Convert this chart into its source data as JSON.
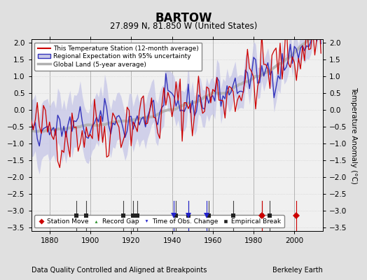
{
  "title": "BARTOW",
  "subtitle": "27.899 N, 81.850 W (United States)",
  "ylabel": "Temperature Anomaly (°C)",
  "xlabel_footer": "Data Quality Controlled and Aligned at Breakpoints",
  "footer_right": "Berkeley Earth",
  "ylim": [
    -3.6,
    2.1
  ],
  "xlim": [
    1871,
    2014
  ],
  "yticks": [
    -3.5,
    -3,
    -2.5,
    -2,
    -1.5,
    -1,
    -0.5,
    0,
    0.5,
    1,
    1.5,
    2
  ],
  "xticks": [
    1880,
    1900,
    1920,
    1940,
    1960,
    1980,
    2000
  ],
  "bg_color": "#e0e0e0",
  "plot_bg_color": "#f0f0f0",
  "station_moves": [
    1984,
    2001
  ],
  "record_gaps": [],
  "tobs_changes": [
    1941,
    1948,
    1957
  ],
  "empirical_breaks": [
    1893,
    1898,
    1916,
    1921,
    1923,
    1942,
    1948,
    1958,
    1970,
    1984,
    1988
  ],
  "seed": 42
}
